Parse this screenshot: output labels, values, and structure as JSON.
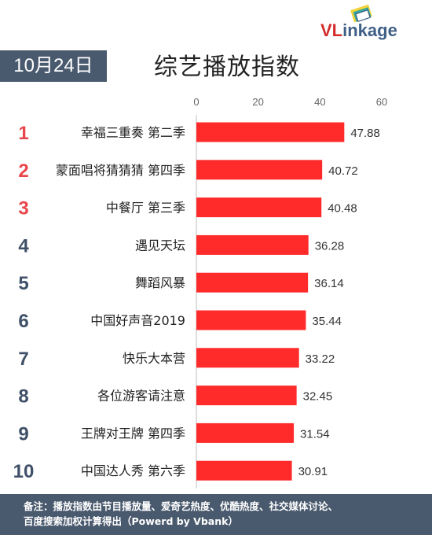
{
  "header": {
    "date": "10月24日",
    "title": "综艺播放指数",
    "logo": "VLinkage"
  },
  "chart_data": {
    "type": "bar",
    "orientation": "horizontal",
    "title": "综艺播放指数",
    "xlim": [
      0,
      60
    ],
    "xticks": [
      0,
      20,
      40,
      60
    ],
    "bar_color": "#ff2b2b",
    "rank_colors": {
      "top3": "#e8474b",
      "rest": "#3f5068"
    },
    "ranks": [
      "1",
      "2",
      "3",
      "4",
      "5",
      "6",
      "7",
      "8",
      "9",
      "10"
    ],
    "categories": [
      "幸福三重奏 第二季",
      "蒙面唱将猜猜猜 第四季",
      "中餐厅 第三季",
      "遇见天坛",
      "舞蹈风暴",
      "中国好声音2019",
      "快乐大本营",
      "各位游客请注意",
      "王牌对王牌 第四季",
      "中国达人秀 第六季"
    ],
    "values": [
      47.88,
      40.72,
      40.48,
      36.28,
      36.14,
      35.44,
      33.22,
      32.45,
      31.54,
      30.91
    ],
    "value_labels": [
      "47.88",
      "40.72",
      "40.48",
      "36.28",
      "36.14",
      "35.44",
      "33.22",
      "32.45",
      "31.54",
      "30.91"
    ]
  },
  "footer": {
    "line1": "备注：播放指数由节目播放量、爱奇艺热度、优酷热度、社交媒体讨论、",
    "line2": "百度搜索加权计算得出（Powerd by Vbank）"
  }
}
